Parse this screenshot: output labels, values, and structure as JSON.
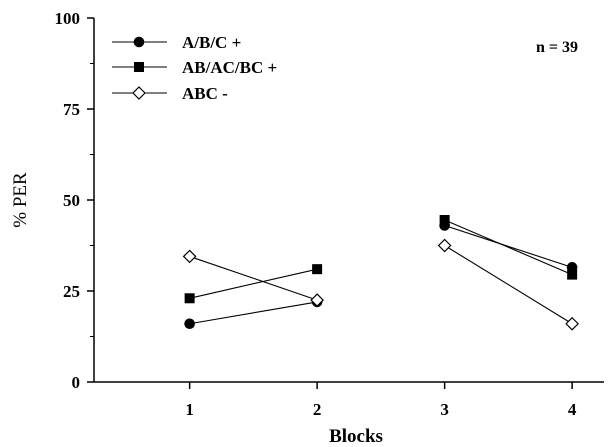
{
  "chart_data": {
    "type": "line",
    "xlabel": "Blocks",
    "ylabel": "% PER",
    "ylim": [
      0,
      100
    ],
    "xlim": [
      0.25,
      4.25
    ],
    "y_ticks": [
      0,
      25,
      50,
      75,
      100
    ],
    "x_ticks": [
      1,
      2,
      3,
      4
    ],
    "grid": false,
    "legend_position": "top-left",
    "annotation": "n = 39",
    "series": [
      {
        "name": "A/B/C +",
        "marker": "filled-circle",
        "segments": [
          [
            {
              "x": 1,
              "y": 16
            },
            {
              "x": 2,
              "y": 22
            }
          ],
          [
            {
              "x": 3,
              "y": 43
            },
            {
              "x": 4,
              "y": 31.5
            }
          ]
        ]
      },
      {
        "name": "AB/AC/BC +",
        "marker": "filled-square",
        "segments": [
          [
            {
              "x": 1,
              "y": 23
            },
            {
              "x": 2,
              "y": 31
            }
          ],
          [
            {
              "x": 3,
              "y": 44.5
            },
            {
              "x": 4,
              "y": 29.5
            }
          ]
        ]
      },
      {
        "name": "ABC -",
        "marker": "open-diamond",
        "segments": [
          [
            {
              "x": 1,
              "y": 34.5
            },
            {
              "x": 2,
              "y": 22.5
            }
          ],
          [
            {
              "x": 3,
              "y": 37.5
            },
            {
              "x": 4,
              "y": 16
            }
          ]
        ]
      }
    ]
  }
}
